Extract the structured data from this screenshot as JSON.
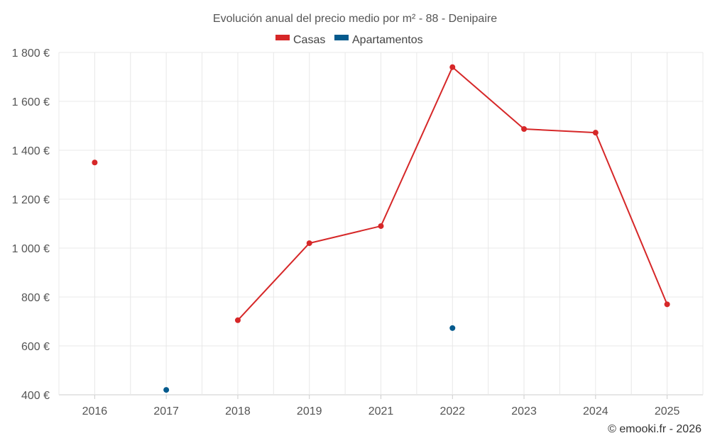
{
  "chart_data": {
    "type": "line",
    "title": "Evolución anual del precio medio por m² - 88 - Denipaire",
    "categories": [
      "2016",
      "2017",
      "2018",
      "2019",
      "2021",
      "2022",
      "2023",
      "2024",
      "2025"
    ],
    "y_ticks": [
      "400 €",
      "600 €",
      "800 €",
      "1 000 €",
      "1 200 €",
      "1 400 €",
      "1 600 €",
      "1 800 €"
    ],
    "ylim": [
      400,
      1800
    ],
    "grid": true,
    "legend_position": "top-center",
    "series": [
      {
        "name": "Casas",
        "color": "#d62728",
        "values": [
          1350,
          null,
          705,
          1020,
          1090,
          1740,
          1487,
          1472,
          770
        ]
      },
      {
        "name": "Apartamentos",
        "color": "#045a8d",
        "values": [
          null,
          420,
          null,
          null,
          null,
          673,
          null,
          null,
          null
        ]
      }
    ],
    "credit": "© emooki.fr - 2026"
  }
}
